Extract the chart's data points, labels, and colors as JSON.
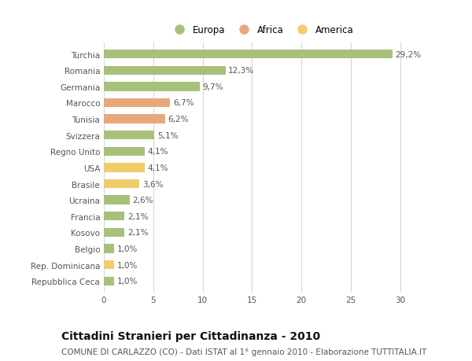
{
  "categories": [
    "Turchia",
    "Romania",
    "Germania",
    "Marocco",
    "Tunisia",
    "Svizzera",
    "Regno Unito",
    "USA",
    "Brasile",
    "Ucraina",
    "Francia",
    "Kosovo",
    "Belgio",
    "Rep. Dominicana",
    "Repubblica Ceca"
  ],
  "values": [
    29.2,
    12.3,
    9.7,
    6.7,
    6.2,
    5.1,
    4.1,
    4.1,
    3.6,
    2.6,
    2.1,
    2.1,
    1.0,
    1.0,
    1.0
  ],
  "labels": [
    "29,2%",
    "12,3%",
    "9,7%",
    "6,7%",
    "6,2%",
    "5,1%",
    "4,1%",
    "4,1%",
    "3,6%",
    "2,6%",
    "2,1%",
    "2,1%",
    "1,0%",
    "1,0%",
    "1,0%"
  ],
  "continents": [
    "Europa",
    "Europa",
    "Europa",
    "Africa",
    "Africa",
    "Europa",
    "Europa",
    "America",
    "America",
    "Europa",
    "Europa",
    "Europa",
    "Europa",
    "America",
    "Europa"
  ],
  "colors": {
    "Europa": "#a8c07a",
    "Africa": "#e8a87c",
    "America": "#f0cc6a"
  },
  "xlim": [
    0,
    32
  ],
  "xticks": [
    0,
    5,
    10,
    15,
    20,
    25,
    30
  ],
  "title": "Cittadini Stranieri per Cittadinanza - 2010",
  "subtitle": "COMUNE DI CARLAZZO (CO) - Dati ISTAT al 1° gennaio 2010 - Elaborazione TUTTITALIA.IT",
  "bg_color": "#ffffff",
  "grid_color": "#d8d8d8",
  "bar_height": 0.55,
  "label_fontsize": 7.5,
  "tick_fontsize": 7.5,
  "title_fontsize": 10,
  "subtitle_fontsize": 7.5
}
